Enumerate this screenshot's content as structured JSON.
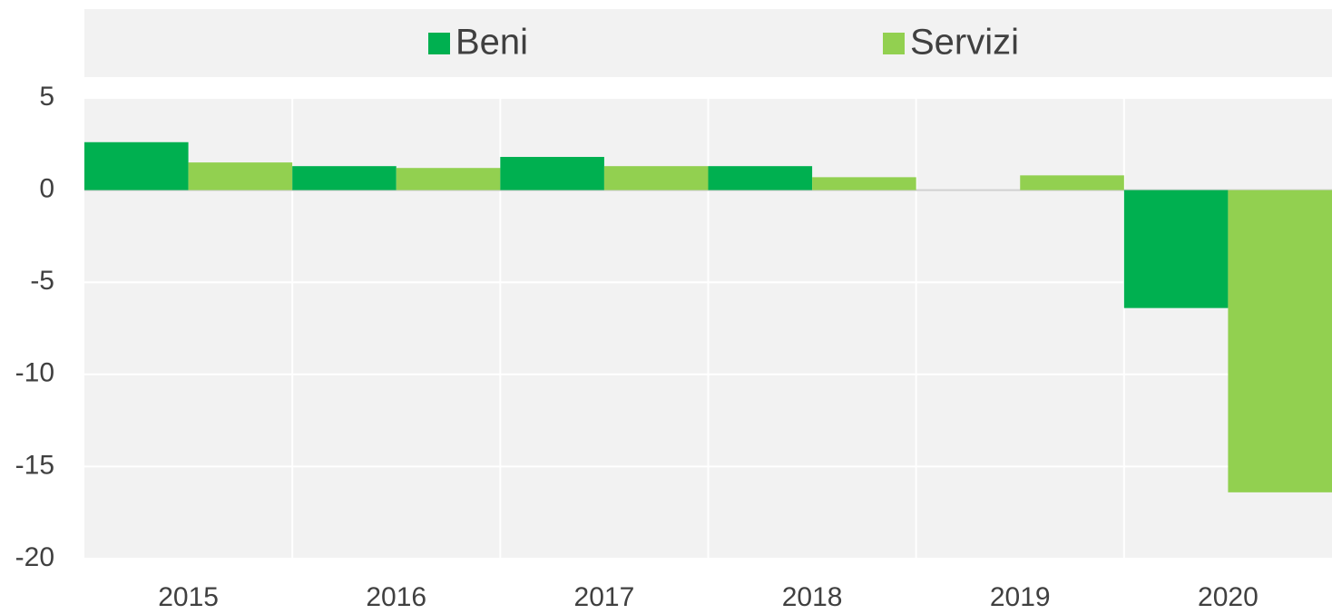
{
  "chart_data": {
    "type": "bar",
    "categories": [
      "2015",
      "2016",
      "2017",
      "2018",
      "2019",
      "2020"
    ],
    "series": [
      {
        "name": "Beni",
        "color": "#00b050",
        "values": [
          2.6,
          1.3,
          1.8,
          1.3,
          0.0,
          -6.4
        ]
      },
      {
        "name": "Servizi",
        "color": "#92d050",
        "values": [
          1.5,
          1.2,
          1.3,
          0.7,
          0.8,
          -16.4
        ]
      }
    ],
    "ylim": [
      -20,
      5
    ],
    "yticks": [
      -20,
      -15,
      -10,
      -5,
      0,
      5
    ],
    "grid": true,
    "legend": "top"
  }
}
